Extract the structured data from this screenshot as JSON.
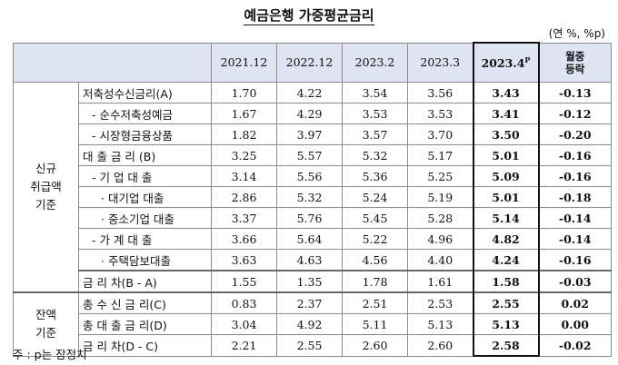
{
  "title": "예금은행 가중평균금리",
  "unit": "(연 %, %p)",
  "columns": [
    "2021.12",
    "2022.12",
    "2023.2",
    "2023.3",
    "2023.4",
    "월중",
    "등락"
  ],
  "prelim_mark": "P",
  "groups": [
    {
      "label_lines": [
        "신규",
        "취급액",
        "기준"
      ]
    },
    {
      "label_lines": [
        "잔액",
        "기준"
      ]
    }
  ],
  "rows": [
    {
      "label": "저축성수신금리(A)",
      "values": [
        "1.70",
        "4.22",
        "3.54",
        "3.56",
        "3.43",
        "-0.13"
      ]
    },
    {
      "label": "- 순수저축성예금",
      "values": [
        "1.67",
        "4.29",
        "3.53",
        "3.53",
        "3.41",
        "-0.12"
      ]
    },
    {
      "label": "- 시장형금융상품",
      "values": [
        "1.82",
        "3.97",
        "3.57",
        "3.70",
        "3.50",
        "-0.20"
      ]
    },
    {
      "label": "대 출 금 리 (B)",
      "values": [
        "3.25",
        "5.57",
        "5.32",
        "5.17",
        "5.01",
        "-0.16"
      ]
    },
    {
      "label": "- 기 업 대 출",
      "values": [
        "3.14",
        "5.56",
        "5.36",
        "5.25",
        "5.09",
        "-0.16"
      ]
    },
    {
      "label": "· 대기업 대출",
      "values": [
        "2.86",
        "5.32",
        "5.24",
        "5.19",
        "5.01",
        "-0.18"
      ]
    },
    {
      "label": "· 중소기업 대출",
      "values": [
        "3.37",
        "5.76",
        "5.45",
        "5.28",
        "5.14",
        "-0.14"
      ]
    },
    {
      "label": "- 가 계 대 출",
      "values": [
        "3.66",
        "5.64",
        "5.22",
        "4.96",
        "4.82",
        "-0.14"
      ]
    },
    {
      "label": "· 주택담보대출",
      "values": [
        "3.63",
        "4.63",
        "4.56",
        "4.40",
        "4.24",
        "-0.16"
      ]
    },
    {
      "label": "금 리 차(B - A)",
      "values": [
        "1.55",
        "1.35",
        "1.78",
        "1.61",
        "1.58",
        "-0.03"
      ]
    },
    {
      "label": "총 수 신 금 리(C)",
      "values": [
        "0.83",
        "2.37",
        "2.51",
        "2.53",
        "2.55",
        "0.02"
      ]
    },
    {
      "label": "총 대 출 금 리(D)",
      "values": [
        "3.04",
        "4.92",
        "5.11",
        "5.13",
        "5.13",
        "0.00"
      ]
    },
    {
      "label": "금 리 차(D - C)",
      "values": [
        "2.21",
        "2.55",
        "2.60",
        "2.60",
        "2.58",
        "-0.02"
      ]
    }
  ],
  "note": "주 : p는 잠정치"
}
